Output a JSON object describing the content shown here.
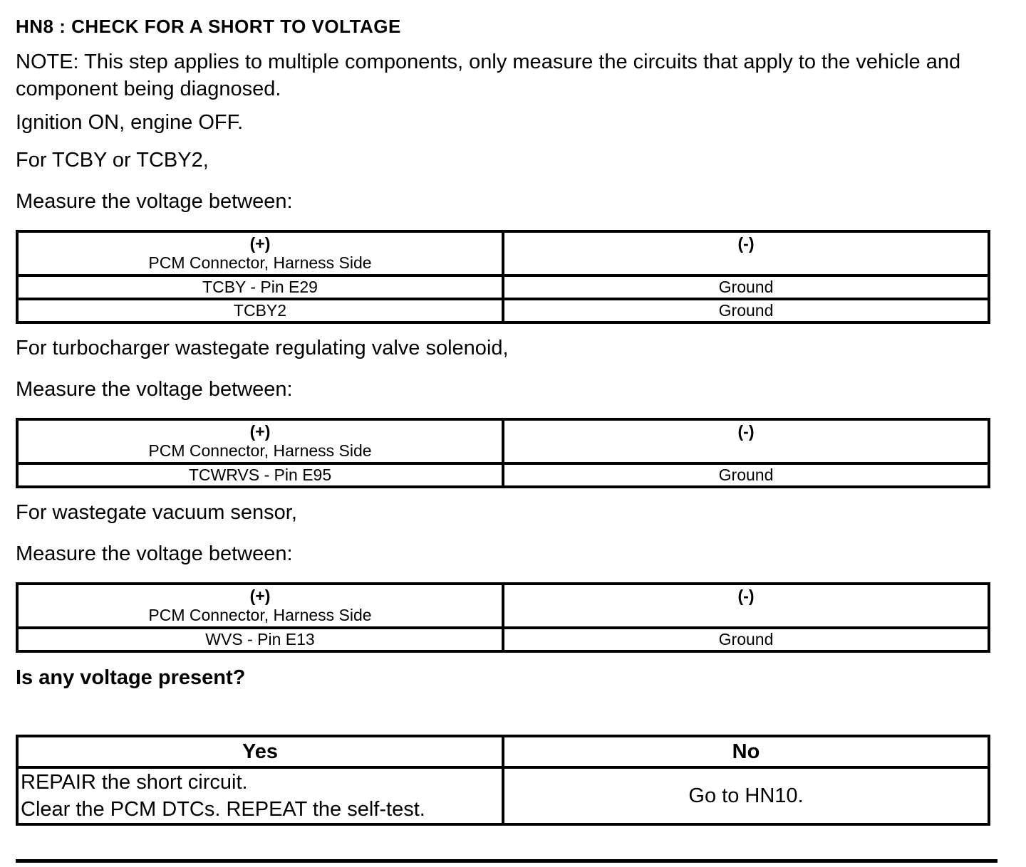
{
  "doc": {
    "title": "HN8 : CHECK FOR A SHORT TO VOLTAGE",
    "note": "NOTE: This step applies to multiple components, only measure the circuits that apply to the vehicle and component being diagnosed.",
    "ignition_line": "Ignition ON, engine OFF.",
    "sections": [
      {
        "condition": "For TCBY or TCBY2,",
        "measure_prompt": "Measure the voltage between:",
        "table": {
          "positive_header_symbol": "(+)",
          "positive_header_label": "PCM Connector, Harness Side",
          "negative_header_symbol": "(-)",
          "rows": [
            {
              "positive": "TCBY - Pin E29",
              "negative": "Ground"
            },
            {
              "positive": "TCBY2",
              "negative": "Ground"
            }
          ]
        }
      },
      {
        "condition": "For turbocharger wastegate regulating valve solenoid,",
        "measure_prompt": "Measure the voltage between:",
        "table": {
          "positive_header_symbol": "(+)",
          "positive_header_label": "PCM Connector, Harness Side",
          "negative_header_symbol": "(-)",
          "rows": [
            {
              "positive": "TCWRVS - Pin E95",
              "negative": "Ground"
            }
          ]
        }
      },
      {
        "condition": "For wastegate vacuum sensor,",
        "measure_prompt": "Measure the voltage between:",
        "table": {
          "positive_header_symbol": "(+)",
          "positive_header_label": "PCM Connector, Harness Side",
          "negative_header_symbol": "(-)",
          "rows": [
            {
              "positive": "WVS - Pin E13",
              "negative": "Ground"
            }
          ]
        }
      }
    ],
    "question": "Is any voltage present?",
    "decision": {
      "yes_header": "Yes",
      "no_header": "No",
      "yes_action_line1": "REPAIR the short circuit.",
      "yes_action_line2": "Clear the PCM DTCs. REPEAT the self-test.",
      "no_action": "Go to HN10."
    }
  }
}
